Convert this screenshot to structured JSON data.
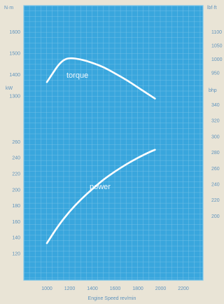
{
  "chart_data": {
    "type": "line",
    "xlabel": "Engine Speed rev/min",
    "x_ticks": [
      "1000",
      "1200",
      "1400",
      "1600",
      "1800",
      "2000",
      "2200"
    ],
    "xlim": [
      800,
      2300
    ],
    "torque_axis": {
      "unit_label": "N·m",
      "ticks": [
        "1600",
        "1500",
        "1400",
        "1300"
      ],
      "ylim": [
        1200,
        1650
      ]
    },
    "power_axis": {
      "unit_label": "kW",
      "ticks": [
        "260",
        "240",
        "220",
        "200",
        "180",
        "160",
        "140",
        "120"
      ],
      "ylim": [
        110,
        265
      ]
    },
    "right_axis": {
      "unit_top": "lbf·ft",
      "unit_mid": "bhp",
      "ticks_top": [
        "1100",
        "1050",
        "1000",
        "950"
      ],
      "ticks_bottom": [
        "340",
        "320",
        "300",
        "280",
        "260",
        "240",
        "220",
        "200"
      ]
    },
    "series": [
      {
        "name": "torque",
        "axis": "torque",
        "x": [
          1000,
          1050,
          1100,
          1150,
          1200,
          1300,
          1400,
          1500,
          1600,
          1700,
          1800,
          1900,
          1950
        ],
        "y": [
          1365,
          1405,
          1445,
          1470,
          1478,
          1472,
          1455,
          1435,
          1405,
          1375,
          1340,
          1305,
          1288
        ]
      },
      {
        "name": "power",
        "axis": "power",
        "x": [
          1000,
          1100,
          1200,
          1300,
          1400,
          1500,
          1600,
          1700,
          1800,
          1900,
          1950
        ],
        "y": [
          133,
          155,
          173,
          188,
          201,
          213,
          223,
          232,
          240,
          247,
          250
        ]
      }
    ],
    "grid": true,
    "colors": {
      "background": "#e9e4d6",
      "plot": "#39a6dd",
      "grid": "#7fc6ea",
      "curve": "#ffffff",
      "text": "#5f93bd"
    }
  }
}
